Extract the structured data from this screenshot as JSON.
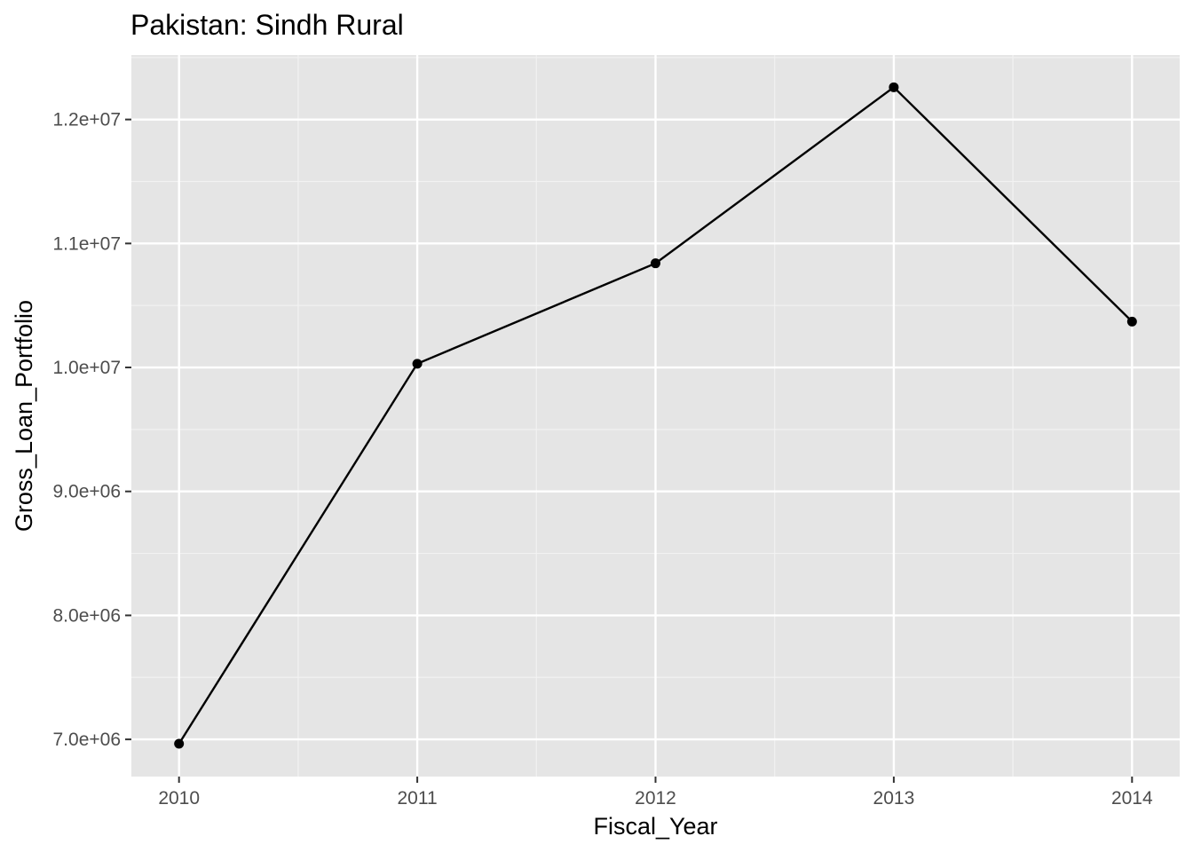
{
  "chart_data": {
    "type": "line",
    "title": "Pakistan:  Sindh Rural",
    "xlabel": "Fiscal_Year",
    "ylabel": "Gross_Loan_Portfolio",
    "x": [
      2010,
      2011,
      2012,
      2013,
      2014
    ],
    "x_tick_labels": [
      "2010",
      "2011",
      "2012",
      "2013",
      "2014"
    ],
    "y_ticks": [
      7000000,
      8000000,
      9000000,
      10000000,
      11000000,
      12000000
    ],
    "y_tick_labels": [
      "7.0e+06",
      "8.0e+06",
      "9.0e+06",
      "1.0e+07",
      "1.1e+07",
      "1.2e+07"
    ],
    "series": [
      {
        "values": [
          6965000,
          10030000,
          10840000,
          12260000,
          10370000
        ]
      }
    ],
    "xlim": [
      2009.8,
      2014.2
    ],
    "ylim": [
      6700000,
      12520000
    ],
    "grid": true,
    "legend": "none",
    "colors": {
      "panel_background": "#e5e5e5",
      "grid_major": "#ffffff",
      "grid_minor": "#f2f2f2",
      "line": "#000000",
      "point": "#000000"
    }
  }
}
